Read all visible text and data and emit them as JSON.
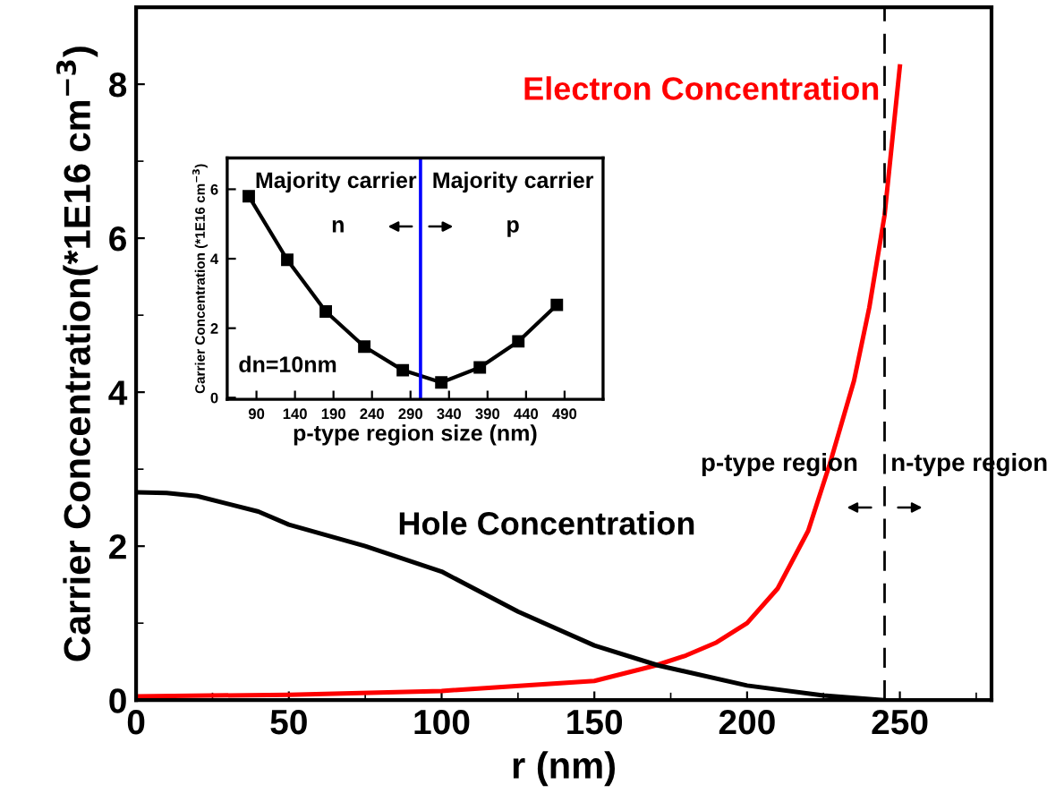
{
  "chart_data": [
    {
      "type": "line",
      "xlabel": "r (nm)",
      "ylabel": "Carrier Concentration(*1E16 cm$^{−3}$)",
      "xlim": [
        0,
        280
      ],
      "ylim": [
        0,
        9
      ],
      "xticks": [
        0,
        {
          "value": 25,
          "label": null
        },
        50,
        {
          "value": 75,
          "label": null
        },
        100,
        {
          "value": 125,
          "label": null
        },
        150,
        {
          "value": 175,
          "label": null
        },
        200,
        {
          "value": 225,
          "label": null
        },
        250,
        {
          "value": 275,
          "label": null
        }
      ],
      "yticks": [
        0,
        {
          "value": 1,
          "label": null
        },
        2,
        {
          "value": 3,
          "label": null
        },
        4,
        {
          "value": 5,
          "label": null
        },
        6,
        {
          "value": 7,
          "label": null
        },
        8
      ],
      "grid": false,
      "legend": false,
      "marker": "none",
      "line_style": "solid",
      "series": [
        {
          "name": "Electron Concentration",
          "color": "#ff0000",
          "x": [
            0,
            50,
            100,
            150,
            170,
            180,
            190,
            200,
            210,
            220,
            227,
            235,
            240,
            245,
            250
          ],
          "values": [
            0.05,
            0.07,
            0.12,
            0.25,
            0.45,
            0.58,
            0.75,
            1.0,
            1.45,
            2.2,
            3.06,
            4.15,
            5.1,
            6.3,
            8.23
          ]
        },
        {
          "name": "Hole Concentration",
          "color": "#000000",
          "x": [
            0,
            10,
            20,
            30,
            40,
            50,
            75,
            100,
            125,
            150,
            171,
            200,
            225,
            245
          ],
          "values": [
            2.7,
            2.69,
            2.65,
            2.55,
            2.45,
            2.28,
            2.0,
            1.67,
            1.15,
            0.71,
            0.45,
            0.19,
            0.06,
            0.0
          ]
        }
      ],
      "ref_lines": [
        {
          "axis": "x",
          "value": 245,
          "color": "#000000",
          "line_style": "dashed"
        }
      ],
      "annotations": [
        "p-type region",
        "n-type region"
      ]
    },
    {
      "type": "line",
      "xlabel": "p-type region size (nm)",
      "ylabel": "Carrier Concentration (*1E16 cm$^{−3}$)",
      "xlim": [
        52,
        540
      ],
      "ylim": [
        -0.05,
        6.9
      ],
      "xticks": [
        90,
        140,
        190,
        240,
        290,
        340,
        390,
        440,
        490
      ],
      "yticks": [
        0,
        2,
        4,
        6
      ],
      "grid": false,
      "legend": false,
      "marker": "square",
      "line_style": "solid",
      "series": [
        {
          "color": "#000000",
          "x": [
            80,
            130,
            180,
            230,
            280,
            330,
            380,
            430,
            480
          ],
          "values": [
            5.8,
            3.97,
            2.48,
            1.47,
            0.79,
            0.44,
            0.87,
            1.62,
            2.67
          ]
        }
      ],
      "ref_lines": [
        {
          "axis": "x",
          "value": 303,
          "color": "#0000ff",
          "line_style": "solid"
        }
      ],
      "annotations": [
        "Majority carrier",
        "Majority carrier",
        "n",
        "p",
        "dn=10nm"
      ]
    }
  ]
}
